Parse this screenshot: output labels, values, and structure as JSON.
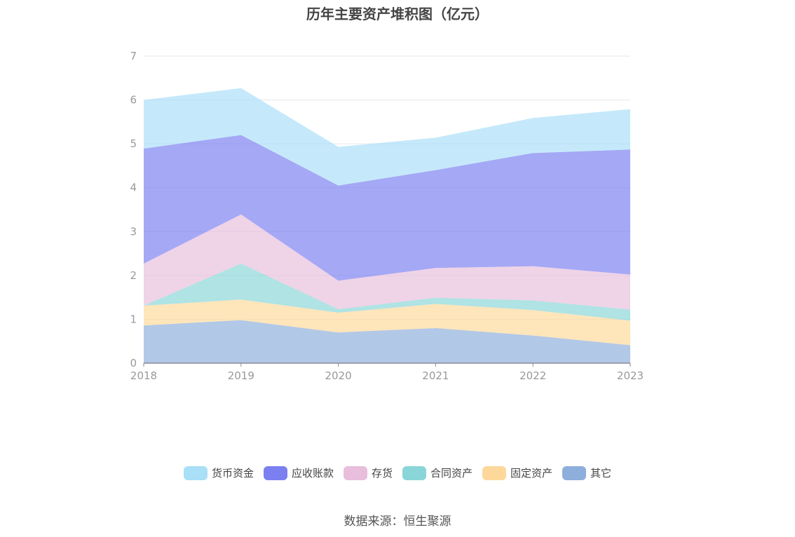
{
  "chart_data": {
    "type": "area",
    "stacked": true,
    "title": "历年主要资产堆积图（亿元）",
    "xlabel": "",
    "ylabel": "",
    "x": [
      "2018",
      "2019",
      "2020",
      "2021",
      "2022",
      "2023"
    ],
    "ylim": [
      0,
      7
    ],
    "yticks": [
      0,
      1,
      2,
      3,
      4,
      5,
      6,
      7
    ],
    "grid": true,
    "legend_position": "bottom",
    "series": [
      {
        "name": "其它",
        "color": "#8eaedb",
        "values": [
          0.86,
          0.98,
          0.7,
          0.8,
          0.63,
          0.41
        ]
      },
      {
        "name": "固定资产",
        "color": "#fdd89a",
        "values": [
          0.45,
          0.47,
          0.45,
          0.55,
          0.58,
          0.56
        ]
      },
      {
        "name": "合同资产",
        "color": "#89d5d7",
        "values": [
          0.0,
          0.82,
          0.08,
          0.14,
          0.22,
          0.25
        ]
      },
      {
        "name": "存货",
        "color": "#e8bedc",
        "values": [
          0.96,
          1.12,
          0.65,
          0.68,
          0.78,
          0.8
        ]
      },
      {
        "name": "应收账款",
        "color": "#7b7ff0",
        "values": [
          2.62,
          1.81,
          2.17,
          2.23,
          2.58,
          2.85
        ]
      },
      {
        "name": "货币资金",
        "color": "#a9dff7",
        "values": [
          1.11,
          1.07,
          0.88,
          0.74,
          0.8,
          0.92
        ]
      }
    ]
  },
  "legend_order": [
    "货币资金",
    "应收账款",
    "存货",
    "合同资产",
    "固定资产",
    "其它"
  ],
  "source": "数据来源：恒生聚源"
}
